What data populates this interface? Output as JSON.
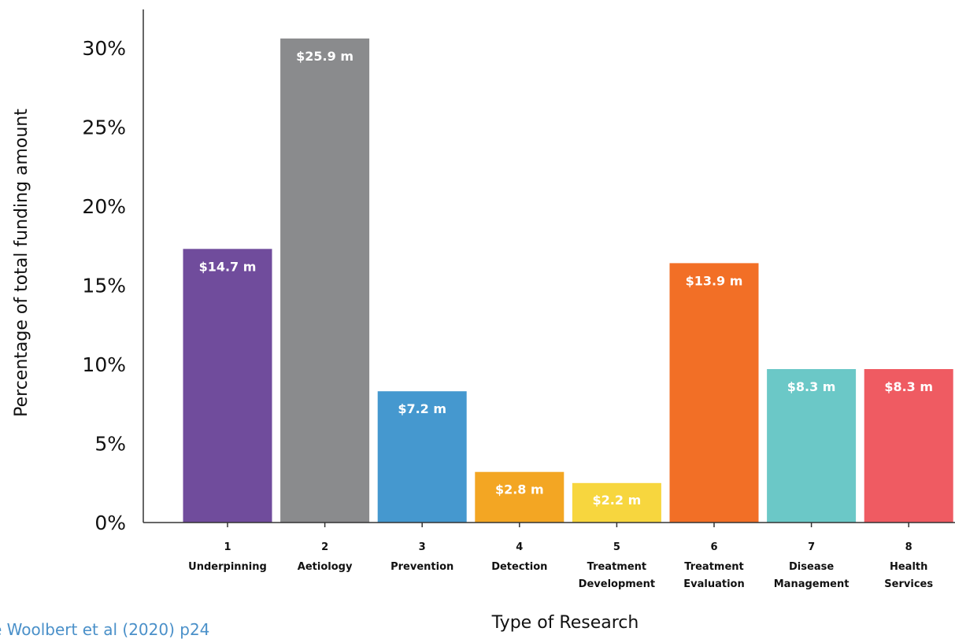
{
  "chart_data": {
    "type": "bar",
    "ylabel": "Percentage of total funding amount",
    "xlabel": "Type of Research",
    "ylim": [
      0,
      32
    ],
    "yticks": [
      0,
      5,
      10,
      15,
      20,
      25,
      30
    ],
    "ytick_labels": [
      "0%",
      "5%",
      "10%",
      "15%",
      "20%",
      "25%",
      "30%"
    ],
    "categories": [
      {
        "number": "1",
        "line1": "Underpinning",
        "line2": ""
      },
      {
        "number": "2",
        "line1": "Aetiology",
        "line2": ""
      },
      {
        "number": "3",
        "line1": "Prevention",
        "line2": ""
      },
      {
        "number": "4",
        "line1": "Detection",
        "line2": ""
      },
      {
        "number": "5",
        "line1": "Treatment",
        "line2": "Development"
      },
      {
        "number": "6",
        "line1": "Treatment",
        "line2": "Evaluation"
      },
      {
        "number": "7",
        "line1": "Disease",
        "line2": "Management"
      },
      {
        "number": "8",
        "line1": "Health",
        "line2": "Services"
      }
    ],
    "values": [
      17.3,
      30.6,
      8.3,
      3.2,
      2.5,
      16.4,
      9.7,
      9.7
    ],
    "amount_labels": [
      "$14.7 m",
      "$25.9 m",
      "$7.2 m",
      "$2.8 m",
      "$2.2 m",
      "$13.9 m",
      "$8.3 m",
      "$8.3 m"
    ],
    "colors": [
      "#704c9c",
      "#8a8b8d",
      "#4598cf",
      "#f3a623",
      "#f7d63e",
      "#f26f26",
      "#6bc8c7",
      "#ef5b62"
    ],
    "grid": false,
    "legend": "none"
  },
  "source_text": "e Woolbert et al (2020) p24"
}
